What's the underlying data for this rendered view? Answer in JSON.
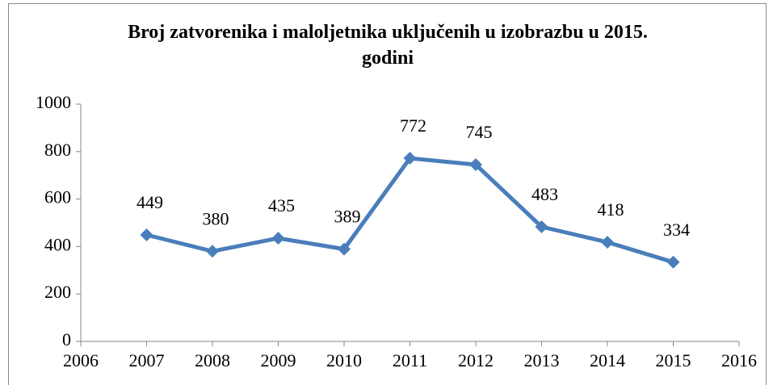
{
  "chart_data": {
    "type": "line",
    "title": "Broj zatvorenika i maloljetnika uključenih u izobrazbu u 2015. godini",
    "x": [
      2007,
      2008,
      2009,
      2010,
      2011,
      2012,
      2013,
      2014,
      2015
    ],
    "values": [
      449,
      380,
      435,
      389,
      772,
      745,
      483,
      418,
      334
    ],
    "color": "#4a7ebb",
    "xlim": [
      2006,
      2016
    ],
    "xticks": [
      2006,
      2007,
      2008,
      2009,
      2010,
      2011,
      2012,
      2013,
      2014,
      2015,
      2016
    ],
    "ylim": [
      0,
      1000
    ],
    "yticks": [
      0,
      200,
      400,
      600,
      800,
      1000
    ],
    "grid": false
  }
}
